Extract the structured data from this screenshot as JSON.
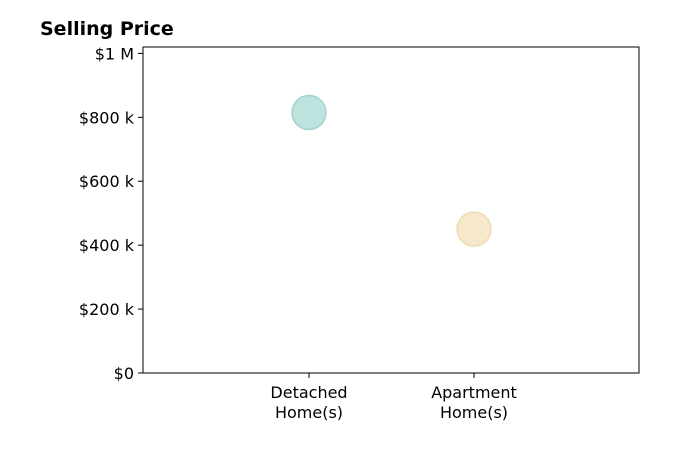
{
  "chart_data": {
    "type": "scatter",
    "title": "Selling Price",
    "xlabel": "",
    "ylabel": "",
    "categories": [
      "Detached\nHome(s)",
      "Apartment\nHome(s)"
    ],
    "values": [
      815000,
      450000
    ],
    "ylim": [
      0,
      1020000
    ],
    "y_ticks": [
      0,
      200000,
      400000,
      600000,
      800000,
      1000000
    ],
    "y_tick_labels": [
      "$0",
      "$200 k",
      "$400 k",
      "$600 k",
      "$800 k",
      "$1 M"
    ],
    "grid": false,
    "legend": "none",
    "colors": {
      "point_fills": [
        "#bde3df",
        "#f6e9cb"
      ],
      "point_strokes": [
        "#9fd3cd",
        "#f0dcb0"
      ],
      "axis": "#000000",
      "text": "#000000"
    }
  }
}
